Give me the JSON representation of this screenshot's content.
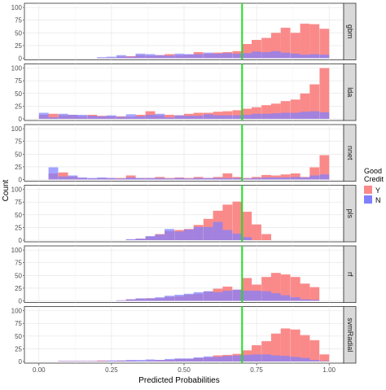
{
  "chart_data": {
    "type": "histogram",
    "facet": "vertical",
    "xlabel": "Predicted Probabilities",
    "ylabel": "Count",
    "xlim": [
      -0.05,
      1.05
    ],
    "x_ticks": [
      0,
      0.25,
      0.5,
      0.75,
      1
    ],
    "x_tick_labels": [
      "0.00",
      "0.25",
      "0.50",
      "0.75",
      "1.00"
    ],
    "ylim": [
      0,
      105
    ],
    "y_ticks": [
      0,
      25,
      50,
      75,
      100
    ],
    "y_tick_labels": [
      "0",
      "25",
      "50",
      "75",
      "100"
    ],
    "bin_width": 0.0333,
    "threshold_line": 0.7,
    "legend": {
      "title_line1": "Good",
      "title_line2": "Credit",
      "items": [
        {
          "key": "Y",
          "label": "Y",
          "color": "#f8766d"
        },
        {
          "key": "N",
          "label": "N",
          "color": "#7f7ff0"
        }
      ],
      "position": "right"
    },
    "colors": {
      "Y": "#fa8a8a",
      "N": "#8080ff",
      "threshold": "#22dd22"
    },
    "panels": [
      {
        "name": "gbm",
        "bins": [
          {
            "x": 0.2,
            "Y": 1,
            "N": 2
          },
          {
            "x": 0.233,
            "Y": 1,
            "N": 3
          },
          {
            "x": 0.267,
            "Y": 3,
            "N": 6
          },
          {
            "x": 0.3,
            "Y": 4,
            "N": 3
          },
          {
            "x": 0.333,
            "Y": 6,
            "N": 9
          },
          {
            "x": 0.367,
            "Y": 5,
            "N": 8
          },
          {
            "x": 0.4,
            "Y": 6,
            "N": 6
          },
          {
            "x": 0.433,
            "Y": 8,
            "N": 5
          },
          {
            "x": 0.467,
            "Y": 6,
            "N": 9
          },
          {
            "x": 0.5,
            "Y": 7,
            "N": 8
          },
          {
            "x": 0.533,
            "Y": 12,
            "N": 8
          },
          {
            "x": 0.567,
            "Y": 9,
            "N": 11
          },
          {
            "x": 0.6,
            "Y": 11,
            "N": 9
          },
          {
            "x": 0.633,
            "Y": 12,
            "N": 10
          },
          {
            "x": 0.667,
            "Y": 14,
            "N": 9
          },
          {
            "x": 0.7,
            "Y": 28,
            "N": 10
          },
          {
            "x": 0.733,
            "Y": 36,
            "N": 13
          },
          {
            "x": 0.767,
            "Y": 40,
            "N": 12
          },
          {
            "x": 0.8,
            "Y": 50,
            "N": 14
          },
          {
            "x": 0.833,
            "Y": 60,
            "N": 11
          },
          {
            "x": 0.867,
            "Y": 50,
            "N": 9
          },
          {
            "x": 0.9,
            "Y": 68,
            "N": 7
          },
          {
            "x": 0.933,
            "Y": 67,
            "N": 8
          },
          {
            "x": 0.967,
            "Y": 58,
            "N": 7
          }
        ]
      },
      {
        "name": "lda",
        "bins": [
          {
            "x": 0.0,
            "Y": 8,
            "N": 12
          },
          {
            "x": 0.033,
            "Y": 10,
            "N": 3
          },
          {
            "x": 0.067,
            "Y": 7,
            "N": 10
          },
          {
            "x": 0.1,
            "Y": 8,
            "N": 8
          },
          {
            "x": 0.133,
            "Y": 5,
            "N": 8
          },
          {
            "x": 0.167,
            "Y": 8,
            "N": 6
          },
          {
            "x": 0.2,
            "Y": 6,
            "N": 5
          },
          {
            "x": 0.233,
            "Y": 5,
            "N": 7
          },
          {
            "x": 0.267,
            "Y": 5,
            "N": 4
          },
          {
            "x": 0.3,
            "Y": 4,
            "N": 9
          },
          {
            "x": 0.333,
            "Y": 8,
            "N": 5
          },
          {
            "x": 0.367,
            "Y": 15,
            "N": 8
          },
          {
            "x": 0.4,
            "Y": 7,
            "N": 10
          },
          {
            "x": 0.433,
            "Y": 8,
            "N": 3
          },
          {
            "x": 0.467,
            "Y": 7,
            "N": 7
          },
          {
            "x": 0.5,
            "Y": 10,
            "N": 6
          },
          {
            "x": 0.533,
            "Y": 12,
            "N": 6
          },
          {
            "x": 0.567,
            "Y": 12,
            "N": 9
          },
          {
            "x": 0.6,
            "Y": 14,
            "N": 7
          },
          {
            "x": 0.633,
            "Y": 15,
            "N": 7
          },
          {
            "x": 0.667,
            "Y": 17,
            "N": 7
          },
          {
            "x": 0.7,
            "Y": 20,
            "N": 8
          },
          {
            "x": 0.733,
            "Y": 23,
            "N": 10
          },
          {
            "x": 0.767,
            "Y": 27,
            "N": 10
          },
          {
            "x": 0.8,
            "Y": 30,
            "N": 11
          },
          {
            "x": 0.833,
            "Y": 35,
            "N": 12
          },
          {
            "x": 0.867,
            "Y": 38,
            "N": 12
          },
          {
            "x": 0.9,
            "Y": 50,
            "N": 14
          },
          {
            "x": 0.933,
            "Y": 68,
            "N": 15
          },
          {
            "x": 0.967,
            "Y": 100,
            "N": 13
          }
        ]
      },
      {
        "name": "nnet",
        "bins": [
          {
            "x": 0.033,
            "Y": 12,
            "N": 24
          },
          {
            "x": 0.067,
            "Y": 14,
            "N": 6
          },
          {
            "x": 0.1,
            "Y": 6,
            "N": 8
          },
          {
            "x": 0.133,
            "Y": 3,
            "N": 4
          },
          {
            "x": 0.167,
            "Y": 2,
            "N": 3
          },
          {
            "x": 0.2,
            "Y": 3,
            "N": 4
          },
          {
            "x": 0.233,
            "Y": 3,
            "N": 3
          },
          {
            "x": 0.267,
            "Y": 3,
            "N": 2
          },
          {
            "x": 0.3,
            "Y": 8,
            "N": 4
          },
          {
            "x": 0.333,
            "Y": 3,
            "N": 3
          },
          {
            "x": 0.367,
            "Y": 3,
            "N": 3
          },
          {
            "x": 0.4,
            "Y": 5,
            "N": 3
          },
          {
            "x": 0.433,
            "Y": 3,
            "N": 2
          },
          {
            "x": 0.467,
            "Y": 4,
            "N": 3
          },
          {
            "x": 0.5,
            "Y": 3,
            "N": 2
          },
          {
            "x": 0.533,
            "Y": 5,
            "N": 3
          },
          {
            "x": 0.567,
            "Y": 3,
            "N": 3
          },
          {
            "x": 0.6,
            "Y": 5,
            "N": 3
          },
          {
            "x": 0.633,
            "Y": 12,
            "N": 3
          },
          {
            "x": 0.667,
            "Y": 5,
            "N": 3
          },
          {
            "x": 0.7,
            "Y": 3,
            "N": 2
          },
          {
            "x": 0.733,
            "Y": 5,
            "N": 3
          },
          {
            "x": 0.767,
            "Y": 9,
            "N": 4
          },
          {
            "x": 0.8,
            "Y": 8,
            "N": 4
          },
          {
            "x": 0.833,
            "Y": 10,
            "N": 4
          },
          {
            "x": 0.867,
            "Y": 12,
            "N": 5
          },
          {
            "x": 0.9,
            "Y": 5,
            "N": 4
          },
          {
            "x": 0.933,
            "Y": 24,
            "N": 8
          },
          {
            "x": 0.967,
            "Y": 48,
            "N": 10
          }
        ]
      },
      {
        "name": "pls",
        "bins": [
          {
            "x": 0.3,
            "Y": 1,
            "N": 2
          },
          {
            "x": 0.333,
            "Y": 3,
            "N": 3
          },
          {
            "x": 0.367,
            "Y": 7,
            "N": 8
          },
          {
            "x": 0.4,
            "Y": 12,
            "N": 11
          },
          {
            "x": 0.433,
            "Y": 18,
            "N": 22
          },
          {
            "x": 0.467,
            "Y": 20,
            "N": 17
          },
          {
            "x": 0.5,
            "Y": 22,
            "N": 21
          },
          {
            "x": 0.533,
            "Y": 30,
            "N": 26
          },
          {
            "x": 0.567,
            "Y": 42,
            "N": 26
          },
          {
            "x": 0.6,
            "Y": 58,
            "N": 36
          },
          {
            "x": 0.633,
            "Y": 70,
            "N": 20
          },
          {
            "x": 0.667,
            "Y": 76,
            "N": 13
          },
          {
            "x": 0.7,
            "Y": 56,
            "N": 6
          },
          {
            "x": 0.733,
            "Y": 31,
            "N": 0
          },
          {
            "x": 0.767,
            "Y": 12,
            "N": 0
          }
        ]
      },
      {
        "name": "rf",
        "bins": [
          {
            "x": 0.267,
            "Y": 1,
            "N": 1
          },
          {
            "x": 0.3,
            "Y": 3,
            "N": 3
          },
          {
            "x": 0.333,
            "Y": 4,
            "N": 5
          },
          {
            "x": 0.367,
            "Y": 5,
            "N": 5
          },
          {
            "x": 0.4,
            "Y": 5,
            "N": 7
          },
          {
            "x": 0.433,
            "Y": 8,
            "N": 10
          },
          {
            "x": 0.467,
            "Y": 9,
            "N": 12
          },
          {
            "x": 0.5,
            "Y": 12,
            "N": 14
          },
          {
            "x": 0.533,
            "Y": 14,
            "N": 17
          },
          {
            "x": 0.567,
            "Y": 18,
            "N": 19
          },
          {
            "x": 0.6,
            "Y": 24,
            "N": 17
          },
          {
            "x": 0.633,
            "Y": 28,
            "N": 20
          },
          {
            "x": 0.667,
            "Y": 22,
            "N": 22
          },
          {
            "x": 0.7,
            "Y": 45,
            "N": 20
          },
          {
            "x": 0.733,
            "Y": 32,
            "N": 20
          },
          {
            "x": 0.767,
            "Y": 47,
            "N": 19
          },
          {
            "x": 0.8,
            "Y": 55,
            "N": 15
          },
          {
            "x": 0.833,
            "Y": 52,
            "N": 11
          },
          {
            "x": 0.867,
            "Y": 47,
            "N": 7
          },
          {
            "x": 0.9,
            "Y": 34,
            "N": 3
          },
          {
            "x": 0.933,
            "Y": 27,
            "N": 2
          }
        ]
      },
      {
        "name": "svmRadial",
        "bins": [
          {
            "x": 0.067,
            "Y": 1,
            "N": 1
          },
          {
            "x": 0.1,
            "Y": 1,
            "N": 1
          },
          {
            "x": 0.133,
            "Y": 1,
            "N": 1
          },
          {
            "x": 0.167,
            "Y": 1,
            "N": 1
          },
          {
            "x": 0.2,
            "Y": 2,
            "N": 1
          },
          {
            "x": 0.233,
            "Y": 1,
            "N": 2
          },
          {
            "x": 0.267,
            "Y": 2,
            "N": 2
          },
          {
            "x": 0.3,
            "Y": 2,
            "N": 3
          },
          {
            "x": 0.333,
            "Y": 1,
            "N": 3
          },
          {
            "x": 0.367,
            "Y": 2,
            "N": 4
          },
          {
            "x": 0.4,
            "Y": 3,
            "N": 3
          },
          {
            "x": 0.433,
            "Y": 3,
            "N": 5
          },
          {
            "x": 0.467,
            "Y": 5,
            "N": 6
          },
          {
            "x": 0.5,
            "Y": 5,
            "N": 6
          },
          {
            "x": 0.533,
            "Y": 7,
            "N": 8
          },
          {
            "x": 0.567,
            "Y": 8,
            "N": 10
          },
          {
            "x": 0.6,
            "Y": 12,
            "N": 9
          },
          {
            "x": 0.633,
            "Y": 13,
            "N": 11
          },
          {
            "x": 0.667,
            "Y": 15,
            "N": 12
          },
          {
            "x": 0.7,
            "Y": 22,
            "N": 13
          },
          {
            "x": 0.733,
            "Y": 32,
            "N": 14
          },
          {
            "x": 0.767,
            "Y": 40,
            "N": 14
          },
          {
            "x": 0.8,
            "Y": 55,
            "N": 12
          },
          {
            "x": 0.833,
            "Y": 65,
            "N": 11
          },
          {
            "x": 0.867,
            "Y": 63,
            "N": 9
          },
          {
            "x": 0.9,
            "Y": 52,
            "N": 7
          },
          {
            "x": 0.933,
            "Y": 42,
            "N": 3
          },
          {
            "x": 0.967,
            "Y": 14,
            "N": 1
          }
        ]
      }
    ]
  }
}
